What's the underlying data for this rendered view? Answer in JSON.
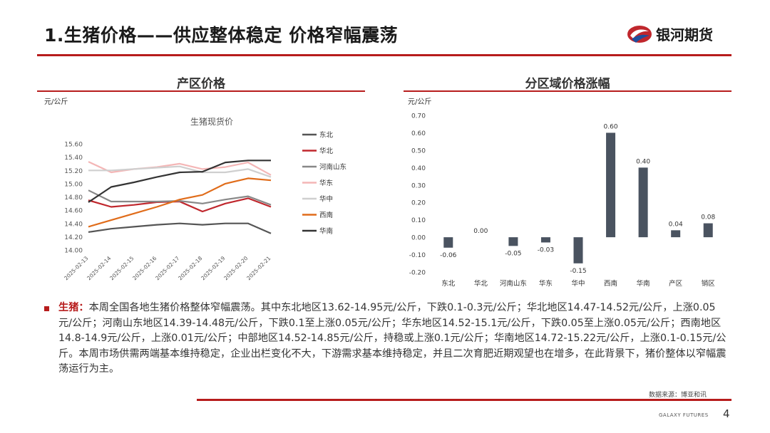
{
  "header": {
    "title": "1.生猪价格——供应整体稳定 价格窄幅震荡",
    "brand": "银河期货",
    "accent_color": "#b71c1c"
  },
  "left_panel": {
    "title": "产区价格",
    "unit": "元/公斤"
  },
  "right_panel": {
    "title": "分区域价格涨幅",
    "unit": "元/公斤"
  },
  "chart_data": [
    {
      "type": "line",
      "title": "生猪现货价",
      "x": [
        "2025-02-13",
        "2025-02-14",
        "2025-02-15",
        "2025-02-16",
        "2025-02-17",
        "2025-02-18",
        "2025-02-19",
        "2025-02-20",
        "2025-02-21"
      ],
      "ylim": [
        14.0,
        15.6
      ],
      "yticks": [
        "14.00",
        "14.20",
        "14.40",
        "14.60",
        "14.80",
        "15.00",
        "15.20",
        "15.40",
        "15.60"
      ],
      "grid": false,
      "legend_position": "right",
      "series": [
        {
          "name": "东北",
          "color": "#555555",
          "values": [
            14.27,
            14.32,
            14.35,
            14.38,
            14.4,
            14.38,
            14.4,
            14.4,
            14.25
          ]
        },
        {
          "name": "华北",
          "color": "#c0272d",
          "values": [
            14.75,
            14.65,
            14.68,
            14.72,
            14.73,
            14.58,
            14.7,
            14.78,
            14.65
          ]
        },
        {
          "name": "河南山东",
          "color": "#888888",
          "values": [
            14.9,
            14.73,
            14.73,
            14.73,
            14.74,
            14.7,
            14.76,
            14.81,
            14.68
          ]
        },
        {
          "name": "华东",
          "color": "#f4b6b6",
          "values": [
            15.33,
            15.17,
            15.22,
            15.25,
            15.3,
            15.22,
            15.25,
            15.32,
            15.13
          ]
        },
        {
          "name": "华中",
          "color": "#cfcfcf",
          "values": [
            15.2,
            15.2,
            15.22,
            15.24,
            15.26,
            15.17,
            15.17,
            15.22,
            15.1
          ]
        },
        {
          "name": "西南",
          "color": "#e06c1a",
          "values": [
            14.35,
            14.45,
            14.55,
            14.65,
            14.76,
            14.83,
            15.0,
            15.08,
            15.05
          ]
        },
        {
          "name": "华南",
          "color": "#333333",
          "values": [
            14.72,
            14.95,
            15.02,
            15.1,
            15.17,
            15.18,
            15.32,
            15.35,
            15.35
          ]
        }
      ]
    },
    {
      "type": "bar",
      "categories": [
        "东北",
        "华北",
        "河南山东",
        "华东",
        "华中",
        "西南",
        "华南",
        "产区",
        "销区"
      ],
      "values": [
        -0.06,
        0.0,
        -0.05,
        -0.03,
        -0.15,
        0.6,
        0.4,
        0.04,
        0.08
      ],
      "data_labels": [
        "-0.06",
        "0.00",
        "-0.05",
        "-0.03",
        "-0.15",
        "0.60",
        "0.40",
        "0.04",
        "0.08"
      ],
      "ylim": [
        -0.2,
        0.7
      ],
      "yticks": [
        "0.70",
        "0.60",
        "0.50",
        "0.40",
        "0.30",
        "0.20",
        "0.10",
        "0.00",
        "-0.10",
        "-0.20"
      ],
      "bar_color": "#4a5360",
      "grid": false
    }
  ],
  "summary": {
    "lead": "生猪：",
    "text": "本周全国各地生猪价格整体窄幅震荡。其中东北地区13.62-14.95元/公斤，下跌0.1-0.3元/公斤；华北地区14.47-14.52元/公斤，上涨0.05元/公斤；河南山东地区14.39-14.48元/公斤，下跌0.1至上涨0.05元/公斤；华东地区14.52-15.1元/公斤，下跌0.05至上涨0.05元/公斤；西南地区14.8-14.9元/公斤，上涨0.01元/公斤；中部地区14.52-14.85元/公斤，持稳或上涨0.1元/公斤；华南地区14.72-15.22元/公斤，上涨0.1-0.15元/公斤。本周市场供需两端基本维持稳定，企业出栏变化不大，下游需求基本维持稳定，并且二次育肥近期观望也在增多，在此背景下，猪价整体以窄幅震荡运行为主。"
  },
  "footer": {
    "source": "数据来源：博亚和讯",
    "brand": "GALAXY FUTURES",
    "page_number": "4"
  }
}
